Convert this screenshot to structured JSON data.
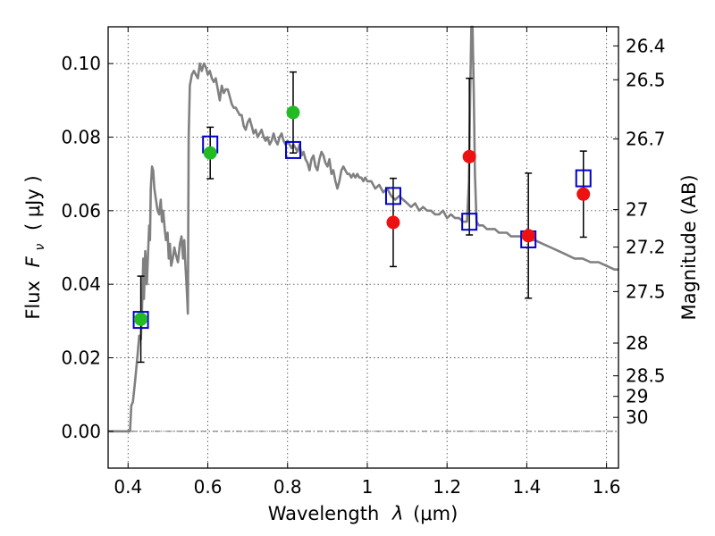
{
  "chart_data": {
    "type": "scatter",
    "xlabel_prefix": "Wavelength",
    "xlabel_symbol": "λ",
    "xlabel_unit": "(μm)",
    "ylabel_prefix": "Flux",
    "ylabel_symbol": "F",
    "ylabel_subscript": "ν",
    "ylabel_unit": "( μJy )",
    "y2label": "Magnitude (AB)",
    "xlim": [
      0.35,
      1.63
    ],
    "ylim": [
      -0.01,
      0.11
    ],
    "xticks": [
      0.4,
      0.6,
      0.8,
      1.0,
      1.2,
      1.4,
      1.6
    ],
    "xtick_labels": [
      "0.4",
      "0.6",
      "0.8",
      "1",
      "1.2",
      "1.4",
      "1.6"
    ],
    "yticks": [
      0.0,
      0.02,
      0.04,
      0.06,
      0.08,
      0.1
    ],
    "ytick_labels": [
      "0.00",
      "0.02",
      "0.04",
      "0.06",
      "0.08",
      "0.10"
    ],
    "right_axis_ticks": [
      {
        "label": "26.4",
        "flux": 0.1048
      },
      {
        "label": "26.5",
        "flux": 0.0956
      },
      {
        "label": "26.7",
        "flux": 0.0795
      },
      {
        "label": "27",
        "flux": 0.0603
      },
      {
        "label": "27.2",
        "flux": 0.0501
      },
      {
        "label": "27.5",
        "flux": 0.038
      },
      {
        "label": "28",
        "flux": 0.024
      },
      {
        "label": "28.5",
        "flux": 0.0151
      },
      {
        "label": "29",
        "flux": 0.0095
      },
      {
        "label": "30",
        "flux": 0.0038
      }
    ],
    "grid": true,
    "zero_line": true,
    "colors": {
      "model": "#808080",
      "model_points": "#0000cc",
      "hst_points": "#22bb22",
      "ir_points": "#ee1111",
      "errorbar": "#000000"
    },
    "model_sed": [
      [
        0.35,
        0.0
      ],
      [
        0.4,
        0.0
      ],
      [
        0.405,
        0.0
      ],
      [
        0.408,
        0.007
      ],
      [
        0.412,
        0.008
      ],
      [
        0.418,
        0.014
      ],
      [
        0.424,
        0.021
      ],
      [
        0.428,
        0.026
      ],
      [
        0.432,
        0.025
      ],
      [
        0.435,
        0.033
      ],
      [
        0.438,
        0.047
      ],
      [
        0.44,
        0.036
      ],
      [
        0.443,
        0.049
      ],
      [
        0.447,
        0.04
      ],
      [
        0.45,
        0.048
      ],
      [
        0.453,
        0.056
      ],
      [
        0.455,
        0.052
      ],
      [
        0.457,
        0.066
      ],
      [
        0.46,
        0.072
      ],
      [
        0.463,
        0.071
      ],
      [
        0.466,
        0.066
      ],
      [
        0.47,
        0.063
      ],
      [
        0.474,
        0.06
      ],
      [
        0.478,
        0.059
      ],
      [
        0.482,
        0.063
      ],
      [
        0.485,
        0.057
      ],
      [
        0.488,
        0.06
      ],
      [
        0.492,
        0.055
      ],
      [
        0.495,
        0.052
      ],
      [
        0.499,
        0.054
      ],
      [
        0.502,
        0.047
      ],
      [
        0.505,
        0.051
      ],
      [
        0.508,
        0.045
      ],
      [
        0.512,
        0.047
      ],
      [
        0.516,
        0.05
      ],
      [
        0.52,
        0.048
      ],
      [
        0.525,
        0.046
      ],
      [
        0.53,
        0.051
      ],
      [
        0.534,
        0.053
      ],
      [
        0.538,
        0.047
      ],
      [
        0.541,
        0.052
      ],
      [
        0.544,
        0.045
      ],
      [
        0.547,
        0.039
      ],
      [
        0.55,
        0.032
      ],
      [
        0.552,
        0.08
      ],
      [
        0.555,
        0.094
      ],
      [
        0.56,
        0.097
      ],
      [
        0.565,
        0.098
      ],
      [
        0.57,
        0.097
      ],
      [
        0.575,
        0.096
      ],
      [
        0.58,
        0.1
      ],
      [
        0.585,
        0.098
      ],
      [
        0.59,
        0.1
      ],
      [
        0.595,
        0.099
      ],
      [
        0.6,
        0.097
      ],
      [
        0.605,
        0.098
      ],
      [
        0.61,
        0.096
      ],
      [
        0.615,
        0.095
      ],
      [
        0.62,
        0.096
      ],
      [
        0.625,
        0.093
      ],
      [
        0.63,
        0.09
      ],
      [
        0.635,
        0.094
      ],
      [
        0.64,
        0.092
      ],
      [
        0.645,
        0.093
      ],
      [
        0.65,
        0.093
      ],
      [
        0.655,
        0.091
      ],
      [
        0.66,
        0.089
      ],
      [
        0.665,
        0.088
      ],
      [
        0.67,
        0.088
      ],
      [
        0.675,
        0.087
      ],
      [
        0.68,
        0.086
      ],
      [
        0.685,
        0.086
      ],
      [
        0.69,
        0.083
      ],
      [
        0.695,
        0.082
      ],
      [
        0.7,
        0.084
      ],
      [
        0.705,
        0.085
      ],
      [
        0.71,
        0.083
      ],
      [
        0.715,
        0.081
      ],
      [
        0.72,
        0.082
      ],
      [
        0.725,
        0.08
      ],
      [
        0.73,
        0.081
      ],
      [
        0.735,
        0.082
      ],
      [
        0.74,
        0.08
      ],
      [
        0.745,
        0.079
      ],
      [
        0.75,
        0.08
      ],
      [
        0.755,
        0.078
      ],
      [
        0.76,
        0.079
      ],
      [
        0.765,
        0.081
      ],
      [
        0.77,
        0.079
      ],
      [
        0.775,
        0.078
      ],
      [
        0.78,
        0.08
      ],
      [
        0.785,
        0.081
      ],
      [
        0.79,
        0.079
      ],
      [
        0.795,
        0.078
      ],
      [
        0.8,
        0.079
      ],
      [
        0.805,
        0.078
      ],
      [
        0.81,
        0.077
      ],
      [
        0.815,
        0.078
      ],
      [
        0.82,
        0.077
      ],
      [
        0.825,
        0.076
      ],
      [
        0.83,
        0.078
      ],
      [
        0.835,
        0.075
      ],
      [
        0.84,
        0.076
      ],
      [
        0.845,
        0.074
      ],
      [
        0.85,
        0.073
      ],
      [
        0.855,
        0.071
      ],
      [
        0.86,
        0.074
      ],
      [
        0.865,
        0.075
      ],
      [
        0.87,
        0.072
      ],
      [
        0.875,
        0.071
      ],
      [
        0.88,
        0.074
      ],
      [
        0.885,
        0.076
      ],
      [
        0.89,
        0.075
      ],
      [
        0.895,
        0.073
      ],
      [
        0.9,
        0.072
      ],
      [
        0.905,
        0.074
      ],
      [
        0.91,
        0.07
      ],
      [
        0.915,
        0.071
      ],
      [
        0.92,
        0.068
      ],
      [
        0.925,
        0.066
      ],
      [
        0.93,
        0.068
      ],
      [
        0.935,
        0.071
      ],
      [
        0.94,
        0.072
      ],
      [
        0.945,
        0.071
      ],
      [
        0.95,
        0.07
      ],
      [
        0.955,
        0.07
      ],
      [
        0.96,
        0.069
      ],
      [
        0.965,
        0.07
      ],
      [
        0.97,
        0.069
      ],
      [
        0.975,
        0.07
      ],
      [
        0.98,
        0.069
      ],
      [
        0.985,
        0.069
      ],
      [
        0.99,
        0.068
      ],
      [
        0.995,
        0.069
      ],
      [
        1.0,
        0.068
      ],
      [
        1.01,
        0.068
      ],
      [
        1.02,
        0.066
      ],
      [
        1.03,
        0.067
      ],
      [
        1.04,
        0.065
      ],
      [
        1.05,
        0.066
      ],
      [
        1.06,
        0.064
      ],
      [
        1.07,
        0.063
      ],
      [
        1.08,
        0.064
      ],
      [
        1.09,
        0.063
      ],
      [
        1.1,
        0.062
      ],
      [
        1.11,
        0.061
      ],
      [
        1.12,
        0.062
      ],
      [
        1.13,
        0.06
      ],
      [
        1.14,
        0.061
      ],
      [
        1.15,
        0.06
      ],
      [
        1.16,
        0.06
      ],
      [
        1.17,
        0.059
      ],
      [
        1.18,
        0.059
      ],
      [
        1.19,
        0.06
      ],
      [
        1.2,
        0.058
      ],
      [
        1.21,
        0.059
      ],
      [
        1.22,
        0.058
      ],
      [
        1.23,
        0.058
      ],
      [
        1.24,
        0.057
      ],
      [
        1.25,
        0.057
      ],
      [
        1.255,
        0.068
      ],
      [
        1.258,
        0.092
      ],
      [
        1.261,
        0.11
      ],
      [
        1.264,
        0.112
      ],
      [
        1.267,
        0.092
      ],
      [
        1.27,
        0.07
      ],
      [
        1.274,
        0.057
      ],
      [
        1.28,
        0.056
      ],
      [
        1.29,
        0.056
      ],
      [
        1.3,
        0.055
      ],
      [
        1.31,
        0.055
      ],
      [
        1.32,
        0.055
      ],
      [
        1.33,
        0.054
      ],
      [
        1.34,
        0.054
      ],
      [
        1.35,
        0.054
      ],
      [
        1.36,
        0.053
      ],
      [
        1.37,
        0.053
      ],
      [
        1.38,
        0.053
      ],
      [
        1.39,
        0.053
      ],
      [
        1.4,
        0.052
      ],
      [
        1.42,
        0.052
      ],
      [
        1.44,
        0.051
      ],
      [
        1.46,
        0.05
      ],
      [
        1.48,
        0.049
      ],
      [
        1.5,
        0.048
      ],
      [
        1.52,
        0.047
      ],
      [
        1.54,
        0.047
      ],
      [
        1.56,
        0.046
      ],
      [
        1.58,
        0.046
      ],
      [
        1.6,
        0.045
      ],
      [
        1.62,
        0.044
      ],
      [
        1.63,
        0.044
      ]
    ],
    "model_photometry": [
      {
        "x": 0.432,
        "y": 0.0303
      },
      {
        "x": 0.606,
        "y": 0.078
      },
      {
        "x": 0.814,
        "y": 0.0765
      },
      {
        "x": 1.065,
        "y": 0.064
      },
      {
        "x": 1.256,
        "y": 0.057
      },
      {
        "x": 1.404,
        "y": 0.0522
      },
      {
        "x": 1.542,
        "y": 0.0688
      }
    ],
    "hst_photometry": [
      {
        "x": 0.432,
        "y": 0.0305,
        "yerr_low": 0.0117,
        "yerr_high": 0.0117
      },
      {
        "x": 0.606,
        "y": 0.0757,
        "yerr_low": 0.007,
        "yerr_high": 0.007
      },
      {
        "x": 0.814,
        "y": 0.0867,
        "yerr_low": 0.011,
        "yerr_high": 0.011
      }
    ],
    "ir_photometry": [
      {
        "x": 1.065,
        "y": 0.0568,
        "yerr_low": 0.012,
        "yerr_high": 0.012
      },
      {
        "x": 1.256,
        "y": 0.0747,
        "yerr_low": 0.0213,
        "yerr_high": 0.0213
      },
      {
        "x": 1.404,
        "y": 0.0532,
        "yerr_low": 0.017,
        "yerr_high": 0.017
      },
      {
        "x": 1.542,
        "y": 0.0645,
        "yerr_low": 0.0117,
        "yerr_high": 0.0117
      }
    ]
  }
}
